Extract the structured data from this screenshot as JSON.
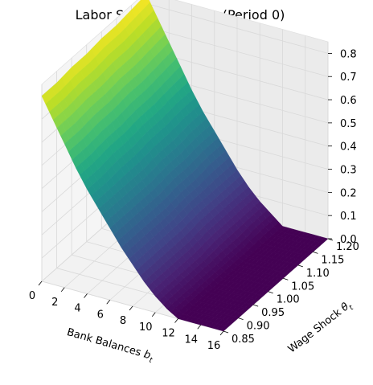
{
  "chart_data": {
    "type": "surface",
    "title": "Labor Supply Function (Period 0)",
    "x_axis": {
      "label": "Bank Balances",
      "label_sub": "t",
      "label_var": "b",
      "range": [
        0,
        16
      ],
      "ticks": [
        "0",
        "2",
        "4",
        "6",
        "8",
        "10",
        "12",
        "14",
        "16"
      ]
    },
    "y_axis": {
      "label": "Wage Shock",
      "label_var": "θ",
      "label_sub": "t",
      "range": [
        0.85,
        1.2
      ],
      "ticks": [
        "0.85",
        "0.90",
        "0.95",
        "1.00",
        "1.05",
        "1.10",
        "1.15",
        "1.20"
      ]
    },
    "z_axis": {
      "label": "",
      "range": [
        0,
        0.85
      ],
      "ticks": [
        "0.0",
        "0.1",
        "0.2",
        "0.3",
        "0.4",
        "0.5",
        "0.6",
        "0.7",
        "0.8"
      ]
    },
    "colormap": "viridis",
    "grid": true,
    "surface": {
      "bank_balances": [
        0,
        1,
        2,
        3,
        4,
        5,
        6,
        7,
        8,
        9,
        10,
        11,
        12,
        13,
        14,
        15,
        16
      ],
      "wage_shocks": [
        0.85,
        0.9,
        0.95,
        1.0,
        1.05,
        1.1,
        1.15,
        1.2
      ],
      "labor_supply_rows": [
        [
          0.8,
          0.71,
          0.62,
          0.53,
          0.45,
          0.38,
          0.31,
          0.24,
          0.18,
          0.12,
          0.07,
          0.03,
          0.0,
          0.0,
          0.0,
          0.0,
          0.0
        ],
        [
          0.8,
          0.71,
          0.62,
          0.53,
          0.45,
          0.38,
          0.31,
          0.24,
          0.18,
          0.12,
          0.07,
          0.03,
          0.0,
          0.0,
          0.0,
          0.0,
          0.0
        ],
        [
          0.81,
          0.72,
          0.63,
          0.54,
          0.46,
          0.38,
          0.31,
          0.24,
          0.18,
          0.12,
          0.07,
          0.03,
          0.0,
          0.0,
          0.0,
          0.0,
          0.0
        ],
        [
          0.81,
          0.72,
          0.63,
          0.54,
          0.46,
          0.38,
          0.31,
          0.24,
          0.18,
          0.12,
          0.07,
          0.03,
          0.0,
          0.0,
          0.0,
          0.0,
          0.0
        ],
        [
          0.82,
          0.73,
          0.64,
          0.55,
          0.47,
          0.39,
          0.32,
          0.25,
          0.19,
          0.13,
          0.08,
          0.03,
          0.0,
          0.0,
          0.0,
          0.0,
          0.0
        ],
        [
          0.82,
          0.73,
          0.64,
          0.55,
          0.47,
          0.39,
          0.32,
          0.25,
          0.19,
          0.13,
          0.08,
          0.03,
          0.0,
          0.0,
          0.0,
          0.0,
          0.0
        ],
        [
          0.83,
          0.74,
          0.65,
          0.56,
          0.48,
          0.4,
          0.33,
          0.26,
          0.19,
          0.13,
          0.08,
          0.04,
          0.0,
          0.0,
          0.0,
          0.0,
          0.0
        ],
        [
          0.84,
          0.75,
          0.66,
          0.57,
          0.48,
          0.4,
          0.33,
          0.26,
          0.19,
          0.13,
          0.08,
          0.04,
          0.0,
          0.0,
          0.0,
          0.0,
          0.0
        ]
      ]
    }
  }
}
